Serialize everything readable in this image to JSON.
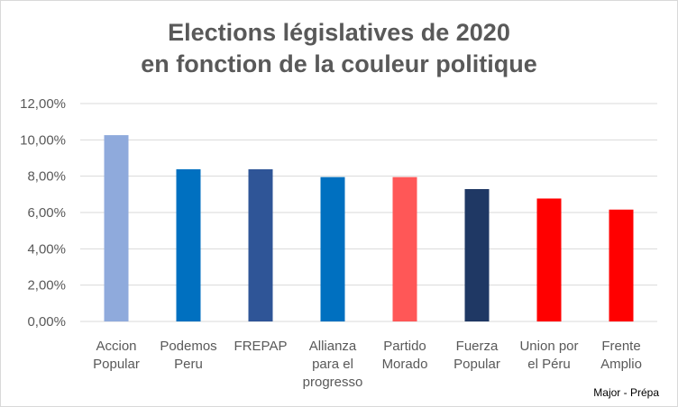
{
  "chart_data": {
    "type": "bar",
    "title": [
      "Elections législatives de 2020",
      "en fonction de la couleur politique"
    ],
    "categories": [
      [
        "Accion",
        "Popular"
      ],
      [
        "Podemos",
        "Peru"
      ],
      [
        "FREPAP"
      ],
      [
        "Allianza",
        "para el",
        "progresso"
      ],
      [
        "Partido",
        "Morado"
      ],
      [
        "Fuerza",
        "Popular"
      ],
      [
        "Union por",
        "el Péru"
      ],
      [
        "Frente",
        "Amplio"
      ]
    ],
    "values": [
      10.26,
      8.38,
      8.38,
      7.95,
      7.95,
      7.29,
      6.77,
      6.16
    ],
    "colors": [
      "#8faadc",
      "#0070c0",
      "#2f5597",
      "#0070c0",
      "#ff5757",
      "#1f3864",
      "#ff0000",
      "#ff0000"
    ],
    "ylim": [
      0,
      12
    ],
    "yticks": [
      "0,00%",
      "2,00%",
      "4,00%",
      "6,00%",
      "8,00%",
      "10,00%",
      "12,00%"
    ],
    "grid": true,
    "gridline_color": "#d9d9d9",
    "axis_text_color": "#595959",
    "credit": "Major - Prépa"
  }
}
